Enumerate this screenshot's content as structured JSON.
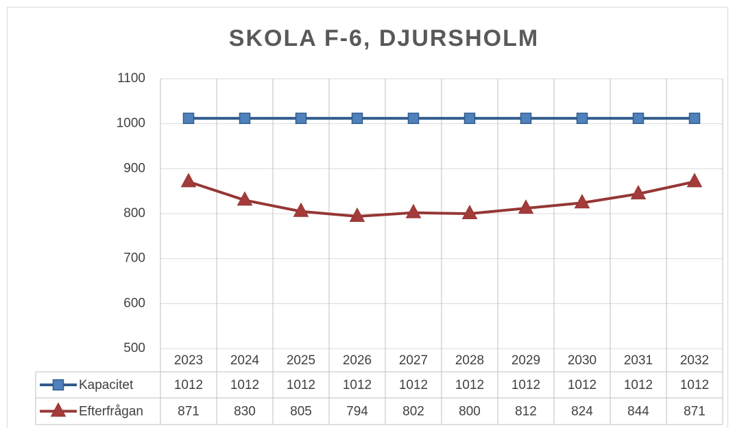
{
  "chart_data": {
    "type": "line",
    "title": "SKOLA F-6, DJURSHOLM",
    "categories": [
      "2023",
      "2024",
      "2025",
      "2026",
      "2027",
      "2028",
      "2029",
      "2030",
      "2031",
      "2032"
    ],
    "series": [
      {
        "name": "Kapacitet",
        "color": "#2f5c8a",
        "marker_color": "#4f81bd",
        "marker": "square",
        "values": [
          1012,
          1012,
          1012,
          1012,
          1012,
          1012,
          1012,
          1012,
          1012,
          1012
        ]
      },
      {
        "name": "Efterfrågan",
        "color": "#953735",
        "marker_color": "#a33b3a",
        "marker": "triangle",
        "values": [
          871,
          830,
          805,
          794,
          802,
          800,
          812,
          824,
          844,
          871
        ]
      }
    ],
    "ylim": [
      500,
      1100
    ],
    "yticks": [
      500,
      600,
      700,
      800,
      900,
      1000,
      1100
    ],
    "grid": true,
    "data_table": true
  }
}
